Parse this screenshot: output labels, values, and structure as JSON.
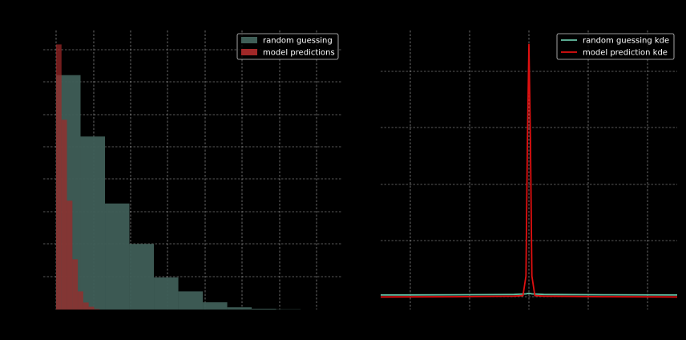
{
  "chart_data": [
    {
      "type": "bar",
      "subtype": "histogram",
      "xlim": [
        0,
        1
      ],
      "ylim": [
        0,
        1
      ],
      "grid": true,
      "legend": "top-right",
      "background": "#000000",
      "series": [
        {
          "name": "random guessing",
          "color": "#3f5e57",
          "bin_edges": [
            0.0,
            0.09,
            0.18,
            0.27,
            0.36,
            0.45,
            0.54,
            0.63,
            0.72,
            0.81,
            0.9
          ],
          "values": [
            0.84,
            0.62,
            0.38,
            0.235,
            0.115,
            0.065,
            0.026,
            0.008,
            0.003,
            0.001
          ]
        },
        {
          "name": "model predictions",
          "color": "#a02828",
          "bin_edges": [
            0.0,
            0.02,
            0.04,
            0.06,
            0.08,
            0.1,
            0.12,
            0.14,
            0.16
          ],
          "values": [
            0.95,
            0.68,
            0.39,
            0.18,
            0.065,
            0.025,
            0.01,
            0.002
          ]
        }
      ]
    },
    {
      "type": "line",
      "subtype": "kde",
      "xlim": [
        -1,
        1
      ],
      "ylim": [
        0,
        1
      ],
      "grid": true,
      "legend": "top-right",
      "background": "#000000",
      "series": [
        {
          "name": "random guessing kde",
          "color": "#66c2a5",
          "x": [
            -1.0,
            -0.5,
            -0.1,
            -0.02,
            0.0,
            0.02,
            0.1,
            0.5,
            1.0
          ],
          "y": [
            0.052,
            0.053,
            0.054,
            0.056,
            0.058,
            0.056,
            0.054,
            0.053,
            0.052
          ]
        },
        {
          "name": "model prediction kde",
          "color": "#e01010",
          "x": [
            -1.0,
            -0.5,
            -0.1,
            -0.04,
            -0.02,
            -0.01,
            0.0,
            0.01,
            0.02,
            0.04,
            0.1,
            0.5,
            1.0
          ],
          "y": [
            0.045,
            0.046,
            0.048,
            0.05,
            0.12,
            0.6,
            0.95,
            0.6,
            0.12,
            0.05,
            0.048,
            0.046,
            0.045
          ]
        }
      ]
    }
  ]
}
